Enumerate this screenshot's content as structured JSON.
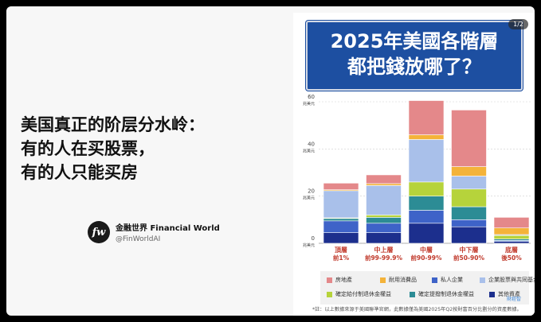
{
  "post": {
    "headline": [
      "美国真正的阶层分水岭：",
      "有的人在买股票，",
      "有的人只能买房"
    ],
    "author_name": "金融世界 Financial World",
    "author_handle": "@FinWorldAI",
    "avatar_text": "fw"
  },
  "image_card": {
    "pager": "1/2",
    "title_line1": "2025年美國各階層",
    "title_line2": "都把錢放哪了？",
    "footnote": "*註：以上數據來源于美國聯準官網，此數據僅為美國2025年Q2按財富百分比劃分的資產數據。",
    "watermark": "財經智"
  },
  "legend": [
    {
      "label": "房地產",
      "color": "#e4888a"
    },
    {
      "label": "耐用消費品",
      "color": "#f4b33a"
    },
    {
      "label": "私人企業",
      "color": "#3e63c8"
    },
    {
      "label": "企業股票與共同基金股份",
      "color": "#a9c0ea"
    },
    {
      "label": "確定給付制退休金權益",
      "color": "#b6d33b"
    },
    {
      "label": "確定提撥制退休金權益",
      "color": "#2c8c95"
    },
    {
      "label": "其他資產",
      "color": "#1c2f8d"
    }
  ],
  "chart_data": {
    "type": "bar",
    "stacked": true,
    "yunit": "兆美元",
    "ylim": [
      0,
      60
    ],
    "yticks": [
      0,
      20,
      40,
      60
    ],
    "categories": [
      {
        "name": "頂層",
        "sub": "前1%"
      },
      {
        "name": "中上層",
        "sub": "前99-99.9%"
      },
      {
        "name": "中層",
        "sub": "前90-99%"
      },
      {
        "name": "中下層",
        "sub": "前50-90%"
      },
      {
        "name": "底層",
        "sub": "後50%"
      }
    ],
    "series": [
      {
        "name": "其他資產",
        "color": "#1c2f8d",
        "values": [
          4.5,
          4.5,
          8.5,
          7.0,
          0.8
        ]
      },
      {
        "name": "私人企業",
        "color": "#3e63c8",
        "values": [
          5.0,
          4.0,
          5.5,
          3.0,
          0.4
        ]
      },
      {
        "name": "確定提撥制退休金權益",
        "color": "#2c8c95",
        "values": [
          1.0,
          2.5,
          6.0,
          5.5,
          0.6
        ]
      },
      {
        "name": "確定給付制退休金權益",
        "color": "#b6d33b",
        "values": [
          0.3,
          1.0,
          6.0,
          7.5,
          1.5
        ]
      },
      {
        "name": "企業股票與共同基金股份",
        "color": "#a9c0ea",
        "values": [
          11.5,
          12.5,
          18.0,
          5.5,
          0.4
        ]
      },
      {
        "name": "耐用消費品",
        "color": "#f4b33a",
        "values": [
          0.4,
          0.8,
          2.0,
          4.0,
          2.8
        ]
      },
      {
        "name": "房地產",
        "color": "#e4888a",
        "values": [
          2.8,
          3.7,
          14.5,
          24.0,
          4.5
        ]
      }
    ]
  }
}
